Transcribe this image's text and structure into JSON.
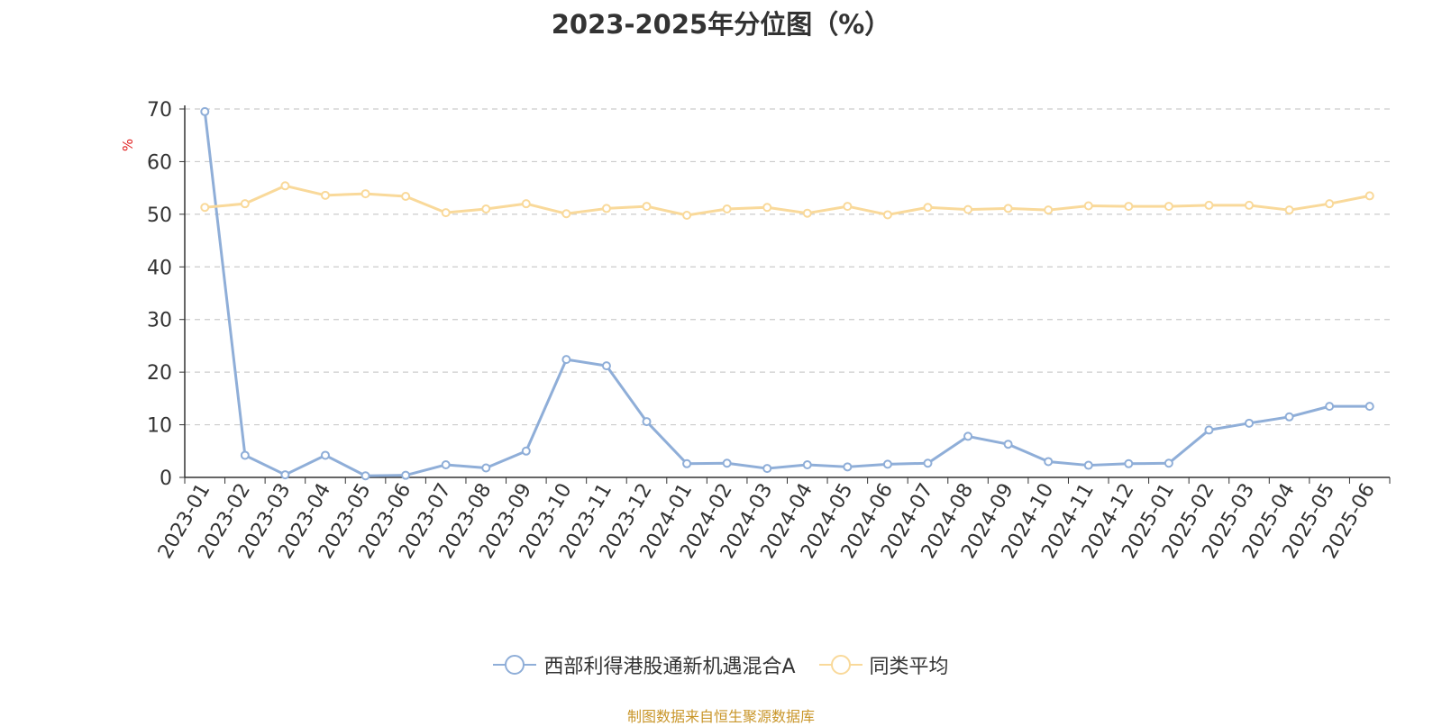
{
  "chart_data": {
    "type": "line",
    "title": "2023-2025年分位图（%）",
    "ylabel": "%",
    "xlabel": "",
    "ylim": [
      0,
      70
    ],
    "yticks": [
      0,
      10,
      20,
      30,
      40,
      50,
      60,
      70
    ],
    "grid": true,
    "legend_position": "bottom",
    "x": [
      "2023-01",
      "2023-02",
      "2023-03",
      "2023-04",
      "2023-05",
      "2023-06",
      "2023-07",
      "2023-08",
      "2023-09",
      "2023-10",
      "2023-11",
      "2023-12",
      "2024-01",
      "2024-02",
      "2024-03",
      "2024-04",
      "2024-05",
      "2024-06",
      "2024-07",
      "2024-08",
      "2024-09",
      "2024-10",
      "2024-11",
      "2024-12",
      "2025-01",
      "2025-02",
      "2025-03",
      "2025-04",
      "2025-05",
      "2025-06"
    ],
    "series": [
      {
        "name": "西部利得港股通新机遇混合A",
        "color": "#8faed8",
        "values": [
          69.5,
          4.2,
          0.5,
          4.2,
          0.3,
          0.4,
          2.4,
          1.8,
          5.0,
          22.4,
          21.2,
          10.6,
          2.6,
          2.7,
          1.7,
          2.4,
          2.0,
          2.5,
          2.7,
          7.8,
          6.3,
          3.0,
          2.3,
          2.6,
          2.7,
          9.0,
          10.3,
          11.5,
          13.5,
          13.5
        ]
      },
      {
        "name": "同类平均",
        "color": "#f9d99a",
        "values": [
          51.3,
          52.0,
          55.4,
          53.6,
          53.9,
          53.4,
          50.3,
          51.0,
          52.0,
          50.1,
          51.1,
          51.5,
          49.8,
          51.0,
          51.3,
          50.2,
          51.5,
          49.9,
          51.3,
          50.9,
          51.1,
          50.8,
          51.6,
          51.5,
          51.5,
          51.7,
          51.7,
          50.8,
          52.0,
          53.5
        ]
      }
    ]
  },
  "source_note": "制图数据来自恒生聚源数据库"
}
